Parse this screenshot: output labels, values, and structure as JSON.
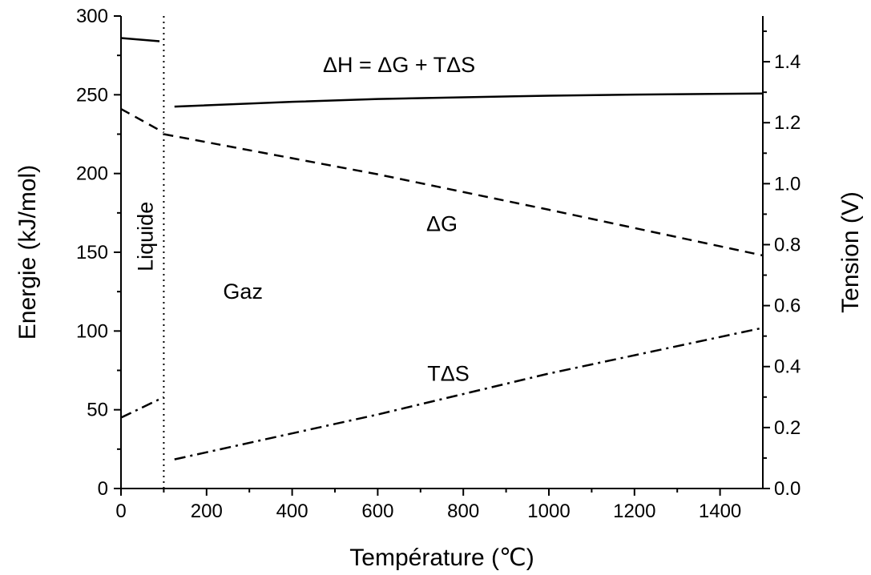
{
  "chart_data": {
    "type": "line",
    "xlabel": "Température (℃)",
    "ylabel": "Energie (kJ/mol)",
    "y2label": "Tension (V)",
    "xlim": [
      0,
      1500
    ],
    "ylim": [
      0,
      300
    ],
    "y2lim": [
      0,
      1.55
    ],
    "xticks": [
      0,
      200,
      400,
      600,
      800,
      1000,
      1200,
      1400
    ],
    "yticks": [
      0,
      50,
      100,
      150,
      200,
      250,
      300
    ],
    "y2ticks": [
      0.0,
      0.2,
      0.4,
      0.6,
      0.8,
      1.0,
      1.2,
      1.4
    ],
    "xtick_labels": [
      "0",
      "200",
      "400",
      "600",
      "800",
      "1000",
      "1200",
      "1400"
    ],
    "ytick_labels": [
      "0",
      "50",
      "100",
      "150",
      "200",
      "250",
      "300"
    ],
    "y2tick_labels": [
      "0.0",
      "0.2",
      "0.4",
      "0.6",
      "0.8",
      "1.0",
      "1.2",
      "1.4"
    ],
    "phase_boundary_x": 100,
    "series": [
      {
        "id": "dH_liquid",
        "style": "solid",
        "x": [
          0,
          90
        ],
        "y": [
          286,
          284
        ]
      },
      {
        "id": "dH_gas",
        "style": "solid",
        "x": [
          125,
          400,
          600,
          800,
          1000,
          1200,
          1500
        ],
        "y": [
          242.5,
          245.5,
          247.3,
          248.4,
          249.4,
          250.1,
          250.8
        ]
      },
      {
        "id": "dG_liquid",
        "style": "dashed",
        "x": [
          0,
          100
        ],
        "y": [
          241,
          226
        ]
      },
      {
        "id": "dG_gas",
        "style": "dashed",
        "x": [
          100,
          600,
          1000,
          1500
        ],
        "y": [
          225,
          199.5,
          177,
          148
        ]
      },
      {
        "id": "TdS_liquid",
        "style": "dashdot",
        "x": [
          0,
          100
        ],
        "y": [
          45,
          58
        ]
      },
      {
        "id": "TdS_gas",
        "style": "dashdot",
        "x": [
          125,
          600,
          1000,
          1500
        ],
        "y": [
          18.5,
          47,
          73,
          102
        ]
      }
    ],
    "annotations": [
      {
        "text": "ΔH = ΔG + TΔS",
        "x": 650,
        "y": 269
      },
      {
        "text": "ΔG",
        "x": 750,
        "y": 168
      },
      {
        "text": "TΔS",
        "x": 765,
        "y": 73
      },
      {
        "text": "Gaz",
        "x": 285,
        "y": 125
      },
      {
        "text": "Liquide",
        "x": 55,
        "y": 160
      }
    ]
  }
}
